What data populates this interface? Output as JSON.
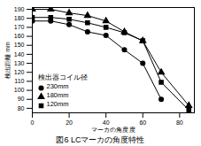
{
  "chart_data": {
    "type": "line",
    "title": "図6 LCマーカの角度特性",
    "x_label": "マーカの角度 度",
    "y_label": "検出距離 mm",
    "legend_title": "検出器コイル径",
    "legend": "lower left",
    "x": [
      0,
      10,
      20,
      30,
      40,
      50,
      60,
      70,
      85
    ],
    "series": [
      {
        "name": "230mm",
        "color": "#000000",
        "marker": "circle",
        "values": [
          177,
          177,
          173,
          165,
          161,
          145,
          130,
          90,
          null
        ]
      },
      {
        "name": "180mm",
        "color": "#000000",
        "marker": "triangle",
        "values": [
          190,
          190,
          186,
          183,
          177,
          165,
          155,
          120,
          83
        ]
      },
      {
        "name": "120mm",
        "color": "#000000",
        "marker": "square",
        "values": [
          181,
          181,
          179,
          175,
          170,
          164,
          155,
          109,
          78
        ]
      }
    ],
    "xlim": [
      0,
      88
    ],
    "xticks": [
      0,
      20,
      40,
      60,
      80
    ],
    "ylim": [
      75,
      192
    ],
    "yticks": [
      80,
      90,
      100,
      110,
      120,
      130,
      140,
      150,
      160,
      170,
      180,
      190
    ]
  }
}
